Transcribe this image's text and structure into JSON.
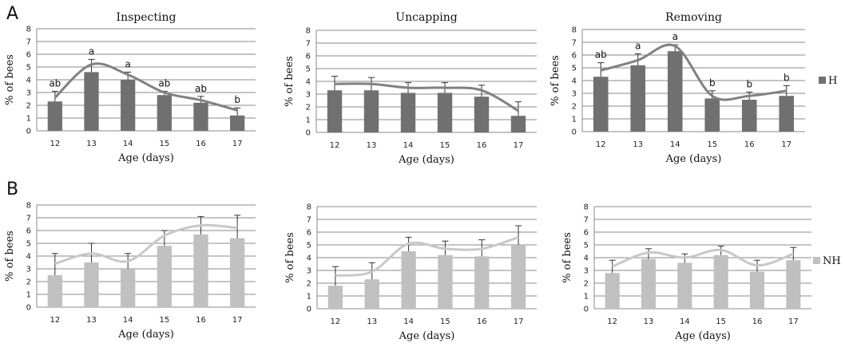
{
  "panels": [
    {
      "letter": "A"
    },
    {
      "letter": "B"
    }
  ],
  "legend": [
    {
      "label": "H",
      "color": "#707070"
    },
    {
      "label": "NH",
      "color": "#c0c0c0"
    }
  ],
  "chart_data": [
    {
      "type": "bar",
      "panel": "A",
      "title": "Inspecting",
      "xlabel": "Age (days)",
      "ylabel": "% of bees",
      "ylim": [
        0,
        8
      ],
      "categories": [
        "12",
        "13",
        "14",
        "15",
        "16",
        "17"
      ],
      "series": [
        {
          "name": "H",
          "values": [
            2.3,
            4.6,
            4.0,
            2.8,
            2.2,
            1.2
          ],
          "errors": [
            0.8,
            1.0,
            0.6,
            0.3,
            0.5,
            0.6
          ]
        }
      ],
      "trendline": [
        2.6,
        5.2,
        4.4,
        3.0,
        2.4,
        1.6
      ],
      "significance": [
        "ab",
        "a",
        "a",
        "ab",
        "ab",
        "b"
      ],
      "color": "#707070",
      "line_color": "#808080"
    },
    {
      "type": "bar",
      "panel": "A",
      "title": "Uncapping",
      "xlabel": "Age (days)",
      "ylabel": "% of bees",
      "ylim": [
        0,
        8
      ],
      "categories": [
        "12",
        "13",
        "14",
        "15",
        "16",
        "17"
      ],
      "series": [
        {
          "name": "H",
          "values": [
            3.3,
            3.3,
            3.1,
            3.1,
            2.8,
            1.3
          ],
          "errors": [
            1.1,
            1.0,
            0.8,
            0.8,
            0.9,
            1.1
          ]
        }
      ],
      "trendline": [
        3.8,
        3.8,
        3.5,
        3.5,
        3.3,
        1.7
      ],
      "significance": [],
      "color": "#707070",
      "line_color": "#808080"
    },
    {
      "type": "bar",
      "panel": "A",
      "title": "Removing",
      "xlabel": "Age (days)",
      "ylabel": "% of bees",
      "ylim": [
        0,
        8
      ],
      "categories": [
        "12",
        "13",
        "14",
        "15",
        "16",
        "17"
      ],
      "series": [
        {
          "name": "H",
          "values": [
            4.3,
            5.2,
            6.3,
            2.6,
            2.5,
            2.8
          ],
          "errors": [
            1.1,
            0.9,
            0.5,
            0.6,
            0.6,
            0.8
          ]
        }
      ],
      "trendline": [
        4.8,
        5.6,
        6.7,
        2.8,
        2.8,
        3.2
      ],
      "significance": [
        "ab",
        "a",
        "a",
        "b",
        "b",
        "b"
      ],
      "color": "#707070",
      "line_color": "#808080"
    },
    {
      "type": "bar",
      "panel": "B",
      "title": "",
      "xlabel": "Age (days)",
      "ylabel": "% of bees",
      "ylim": [
        0,
        8
      ],
      "categories": [
        "12",
        "13",
        "14",
        "15",
        "16",
        "17"
      ],
      "series": [
        {
          "name": "NH",
          "values": [
            2.5,
            3.5,
            3.0,
            4.8,
            5.7,
            5.4
          ],
          "errors": [
            1.7,
            1.5,
            1.2,
            1.2,
            1.4,
            1.8
          ]
        }
      ],
      "trendline": [
        3.4,
        4.2,
        3.6,
        5.6,
        6.4,
        6.2
      ],
      "significance": [],
      "color": "#c0c0c0",
      "line_color": "#c8c8c8"
    },
    {
      "type": "bar",
      "panel": "B",
      "title": "",
      "xlabel": "Age (days)",
      "ylabel": "% of bees",
      "ylim": [
        0,
        8
      ],
      "categories": [
        "12",
        "13",
        "14",
        "15",
        "16",
        "17"
      ],
      "series": [
        {
          "name": "NH",
          "values": [
            1.8,
            2.3,
            4.5,
            4.2,
            4.1,
            5.0
          ],
          "errors": [
            1.5,
            1.3,
            1.1,
            1.1,
            1.3,
            1.5
          ]
        }
      ],
      "trendline": [
        2.6,
        2.9,
        5.1,
        4.7,
        4.7,
        5.6
      ],
      "significance": [],
      "color": "#c0c0c0",
      "line_color": "#c8c8c8"
    },
    {
      "type": "bar",
      "panel": "B",
      "title": "",
      "xlabel": "Age (days)",
      "ylabel": "% of bees",
      "ylim": [
        0,
        8
      ],
      "categories": [
        "12",
        "13",
        "14",
        "15",
        "16",
        "17"
      ],
      "series": [
        {
          "name": "NH",
          "values": [
            2.8,
            3.9,
            3.6,
            4.2,
            2.9,
            3.8
          ],
          "errors": [
            1.0,
            0.8,
            0.7,
            0.7,
            0.9,
            1.0
          ]
        }
      ],
      "trendline": [
        3.3,
        4.4,
        4.0,
        4.6,
        3.4,
        4.3
      ],
      "significance": [],
      "color": "#c0c0c0",
      "line_color": "#c8c8c8"
    }
  ]
}
